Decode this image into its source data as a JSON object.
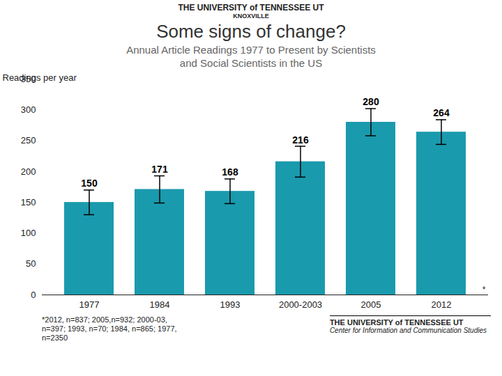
{
  "chart_data": {
    "type": "bar",
    "title": "Some signs of change?",
    "subtitle": "Annual Article Readings 1977 to Present by Scientists\nand Social Scientists in the US",
    "categories": [
      "1977",
      "1984",
      "1993",
      "2000-2003",
      "2005",
      "2012"
    ],
    "values": [
      150,
      171,
      168,
      216,
      280,
      264
    ],
    "errors": [
      20,
      22,
      20,
      25,
      22,
      20
    ],
    "color": "#1a9aad",
    "ylabel": "Readings per year",
    "ylim": [
      0,
      350
    ],
    "yticks": [
      0,
      50,
      100,
      150,
      200,
      250,
      300,
      350
    ],
    "grid": false,
    "data_labels": true,
    "annotations": [
      "THE UNIVERSITY of TENNESSEE  UT",
      "KNOXVILLE",
      "*",
      "*2012, n=837; 2005,n=932; 2000-03,\nn=397; 1993, n=70; 1984, n=865; 1977,\nn=2350",
      "THE UNIVERSITY of TENNESSEE  UT",
      "Center for Information and  Communication Studies"
    ]
  }
}
